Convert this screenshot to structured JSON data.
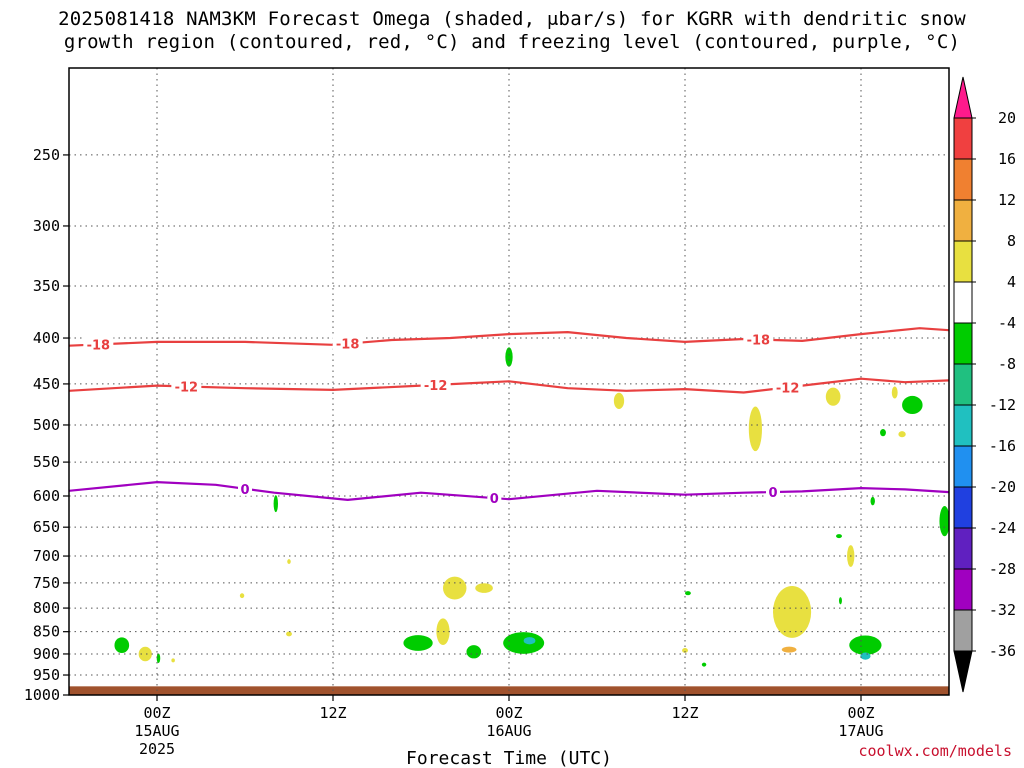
{
  "chart_data": {
    "type": "heatmap",
    "title_line1": "2025081418 NAM3KM Forecast Omega (shaded, μbar/s) for KGRR with dendritic snow",
    "title_line2": "growth region (contoured, red, °C) and freezing level (contoured, purple, °C)",
    "xlabel": "Forecast Time (UTC)",
    "credit": "coolwx.com/models",
    "x_ticks": [
      {
        "hour": 6,
        "label": "00Z",
        "sub1": "15AUG",
        "sub2": "2025"
      },
      {
        "hour": 18,
        "label": "12Z",
        "sub1": "",
        "sub2": ""
      },
      {
        "hour": 30,
        "label": "00Z",
        "sub1": "16AUG",
        "sub2": ""
      },
      {
        "hour": 42,
        "label": "12Z",
        "sub1": "",
        "sub2": ""
      },
      {
        "hour": 54,
        "label": "00Z",
        "sub1": "17AUG",
        "sub2": ""
      }
    ],
    "xlim_hours": [
      0,
      60
    ],
    "y_ticks": [
      "250",
      "300",
      "350",
      "400",
      "450",
      "500",
      "550",
      "600",
      "650",
      "700",
      "750",
      "800",
      "850",
      "900",
      "950",
      "1000"
    ],
    "ylim_hpa": [
      200,
      1000
    ],
    "y_scale": "log-pressure",
    "grid": true,
    "colorbar": {
      "ticks": [
        "20",
        "16",
        "12",
        "8",
        "4",
        "-4",
        "-8",
        "-12",
        "-16",
        "-20",
        "-24",
        "-28",
        "-32",
        "-36"
      ],
      "colors": [
        "#ff1a8c",
        "#f04040",
        "#f08030",
        "#f0b040",
        "#e8e040",
        "#ffffff",
        "#00cc00",
        "#20c080",
        "#20c0c0",
        "#2090f0",
        "#2040e0",
        "#6020c0",
        "#a000c0",
        "#a0a0a0",
        "#000000"
      ]
    },
    "contours": [
      {
        "level": "-18",
        "color": "#e84040",
        "points": [
          [
            0,
            408
          ],
          [
            6,
            404
          ],
          [
            12,
            404
          ],
          [
            18,
            407
          ],
          [
            22,
            402
          ],
          [
            26,
            400
          ],
          [
            30,
            396
          ],
          [
            34,
            394
          ],
          [
            38,
            400
          ],
          [
            42,
            404
          ],
          [
            46,
            401
          ],
          [
            50,
            403
          ],
          [
            54,
            396
          ],
          [
            58,
            390
          ],
          [
            60,
            392
          ]
        ],
        "label_hours": [
          2,
          19,
          47
        ]
      },
      {
        "level": "-12",
        "color": "#e84040",
        "points": [
          [
            0,
            458
          ],
          [
            6,
            452
          ],
          [
            12,
            455
          ],
          [
            18,
            457
          ],
          [
            24,
            452
          ],
          [
            30,
            447
          ],
          [
            34,
            455
          ],
          [
            38,
            458
          ],
          [
            42,
            456
          ],
          [
            46,
            460
          ],
          [
            50,
            452
          ],
          [
            54,
            444
          ],
          [
            57,
            448
          ],
          [
            60,
            446
          ]
        ],
        "label_hours": [
          8,
          25,
          49
        ]
      },
      {
        "level": "0",
        "color": "#a000c0",
        "points": [
          [
            0,
            592
          ],
          [
            6,
            579
          ],
          [
            10,
            583
          ],
          [
            14,
            595
          ],
          [
            19,
            606
          ],
          [
            24,
            595
          ],
          [
            30,
            605
          ],
          [
            36,
            592
          ],
          [
            42,
            598
          ],
          [
            46,
            595
          ],
          [
            50,
            593
          ],
          [
            54,
            588
          ],
          [
            57,
            590
          ],
          [
            60,
            594
          ]
        ],
        "label_hours": [
          12,
          29,
          48
        ]
      }
    ],
    "shaded_regions": [
      {
        "color": "#e8e040",
        "cx": 37.5,
        "cy": 470,
        "rx": 0.35,
        "ry": 1.35
      },
      {
        "color": "#e8e040",
        "cx": 52.1,
        "cy": 465,
        "rx": 0.5,
        "ry": 1.5
      },
      {
        "color": "#e8e040",
        "cx": 56.3,
        "cy": 460,
        "rx": 0.2,
        "ry": 1.0
      },
      {
        "color": "#e8e040",
        "cx": 56.8,
        "cy": 512,
        "rx": 0.25,
        "ry": 0.5
      },
      {
        "color": "#00cc00",
        "cx": 57.5,
        "cy": 475,
        "rx": 0.7,
        "ry": 1.5
      },
      {
        "color": "#00cc00",
        "cx": 30.0,
        "cy": 420,
        "rx": 0.25,
        "ry": 1.6
      },
      {
        "color": "#e8e040",
        "cx": 46.8,
        "cy": 505,
        "rx": 0.45,
        "ry": 3.7
      },
      {
        "color": "#00cc00",
        "cx": 55.5,
        "cy": 510,
        "rx": 0.2,
        "ry": 0.6
      },
      {
        "color": "#00cc00",
        "cx": 54.8,
        "cy": 608,
        "rx": 0.15,
        "ry": 0.7
      },
      {
        "color": "#00cc00",
        "cx": 14.1,
        "cy": 612,
        "rx": 0.15,
        "ry": 1.4
      },
      {
        "color": "#00cc00",
        "cx": 59.7,
        "cy": 640,
        "rx": 0.35,
        "ry": 2.5
      },
      {
        "color": "#e8e040",
        "cx": 26.3,
        "cy": 760,
        "rx": 0.8,
        "ry": 1.9
      },
      {
        "color": "#e8e040",
        "cx": 28.3,
        "cy": 760,
        "rx": 0.6,
        "ry": 0.8
      },
      {
        "color": "#e8e040",
        "cx": 15.0,
        "cy": 710,
        "rx": 0.12,
        "ry": 0.4
      },
      {
        "color": "#e8e040",
        "cx": 11.8,
        "cy": 775,
        "rx": 0.15,
        "ry": 0.4
      },
      {
        "color": "#e8e040",
        "cx": 15.0,
        "cy": 855,
        "rx": 0.2,
        "ry": 0.4
      },
      {
        "color": "#00cc00",
        "cx": 3.6,
        "cy": 880,
        "rx": 0.5,
        "ry": 1.3
      },
      {
        "color": "#e8e040",
        "cx": 5.2,
        "cy": 900,
        "rx": 0.45,
        "ry": 1.2
      },
      {
        "color": "#00cc00",
        "cx": 6.1,
        "cy": 910,
        "rx": 0.12,
        "ry": 0.8
      },
      {
        "color": "#e8e040",
        "cx": 7.1,
        "cy": 915,
        "rx": 0.12,
        "ry": 0.2
      },
      {
        "color": "#00cc00",
        "cx": 23.8,
        "cy": 875,
        "rx": 1.0,
        "ry": 1.3
      },
      {
        "color": "#e8e040",
        "cx": 25.5,
        "cy": 850,
        "rx": 0.45,
        "ry": 2.2
      },
      {
        "color": "#00cc00",
        "cx": 27.6,
        "cy": 895,
        "rx": 0.5,
        "ry": 1.1
      },
      {
        "color": "#00cc00",
        "cx": 31.0,
        "cy": 875,
        "rx": 1.4,
        "ry": 1.8
      },
      {
        "color": "#20c0c0",
        "cx": 31.4,
        "cy": 870,
        "rx": 0.4,
        "ry": 0.6
      },
      {
        "color": "#00cc00",
        "cx": 42.2,
        "cy": 770,
        "rx": 0.2,
        "ry": 0.3
      },
      {
        "color": "#e8e040",
        "cx": 42.0,
        "cy": 892,
        "rx": 0.2,
        "ry": 0.4
      },
      {
        "color": "#00cc00",
        "cx": 43.3,
        "cy": 925,
        "rx": 0.15,
        "ry": 0.2
      },
      {
        "color": "#e8e040",
        "cx": 49.3,
        "cy": 808,
        "rx": 1.3,
        "ry": 4.3
      },
      {
        "color": "#f0b040",
        "cx": 49.1,
        "cy": 890,
        "rx": 0.5,
        "ry": 0.5
      },
      {
        "color": "#00cc00",
        "cx": 52.5,
        "cy": 665,
        "rx": 0.2,
        "ry": 0.3
      },
      {
        "color": "#e8e040",
        "cx": 53.3,
        "cy": 700,
        "rx": 0.25,
        "ry": 1.8
      },
      {
        "color": "#00cc00",
        "cx": 52.6,
        "cy": 785,
        "rx": 0.1,
        "ry": 0.6
      },
      {
        "color": "#00cc00",
        "cx": 54.3,
        "cy": 880,
        "rx": 1.1,
        "ry": 1.6
      },
      {
        "color": "#20c0c0",
        "cx": 54.3,
        "cy": 905,
        "rx": 0.35,
        "ry": 0.6
      }
    ],
    "surface_fill": {
      "color": "#a0522d",
      "pressure_top": 978
    }
  }
}
